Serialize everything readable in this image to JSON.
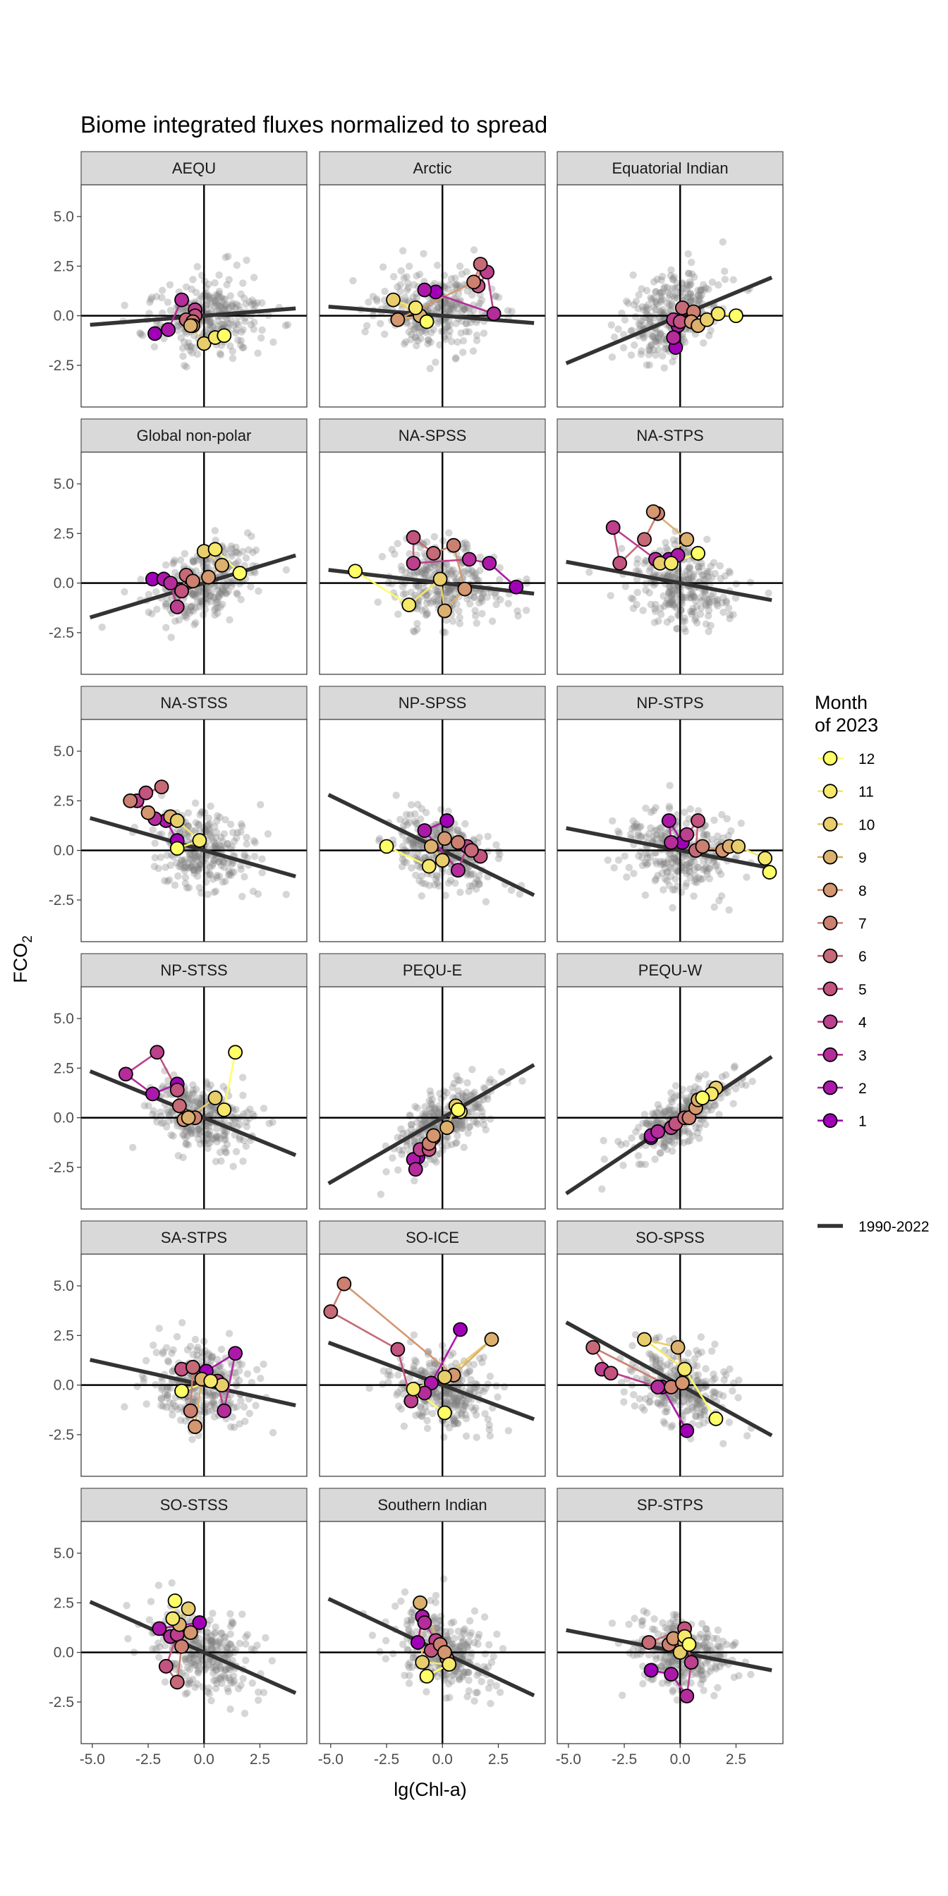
{
  "chart_data": {
    "type": "scatter",
    "title": "Biome integrated fluxes normalized to spread",
    "xlabel": "lg(Chl-a)",
    "ylabel": "FCO2",
    "xlim": [
      -5.5,
      4.6
    ],
    "ylim": [
      -4.6,
      6.6
    ],
    "x_ticks": [
      -5.0,
      -2.5,
      0.0,
      2.5
    ],
    "y_ticks": [
      -2.5,
      0.0,
      2.5,
      5.0
    ],
    "x_tick_labels": [
      "-5.0",
      "-2.5",
      "0.0",
      "2.5"
    ],
    "y_tick_labels": [
      "-2.5",
      "0.0",
      "2.5",
      "5.0"
    ],
    "grid": false,
    "legend": {
      "placement": "right",
      "title_lines": [
        "Month",
        "of 2023"
      ],
      "months": [
        "12",
        "11",
        "10",
        "9",
        "8",
        "7",
        "6",
        "5",
        "4",
        "3",
        "2",
        "1"
      ],
      "month_colors": [
        "#ffff66",
        "#f5e86a",
        "#e8cd6b",
        "#dcb06d",
        "#d4976f",
        "#cc8070",
        "#c66a77",
        "#c2547f",
        "#bc408d",
        "#b52c9b",
        "#ac19aa",
        "#a200b8"
      ],
      "line_label": "1990-2022"
    },
    "panels": [
      {
        "name": "AEQU",
        "slope": 0.09,
        "intercept": 0.0,
        "seed": 1,
        "cx": 0.2,
        "cy": 0.0,
        "sx": 1.2,
        "sy": 1.0,
        "rho": 0.05,
        "months": [
          [
            0.9,
            -1.0
          ],
          [
            0.5,
            -1.1
          ],
          [
            0.0,
            -1.4
          ],
          [
            -0.6,
            -0.5
          ],
          [
            -0.5,
            -0.5
          ],
          [
            -0.5,
            -0.3
          ],
          [
            -0.8,
            -0.2
          ],
          [
            -0.4,
            0.0
          ],
          [
            -0.4,
            0.3
          ],
          [
            -1.0,
            0.8
          ],
          [
            -1.6,
            -0.7
          ],
          [
            -2.2,
            -0.9
          ]
        ]
      },
      {
        "name": "Arctic",
        "slope": -0.09,
        "intercept": 0.0,
        "seed": 2,
        "cx": -0.3,
        "cy": 0.2,
        "sx": 1.3,
        "sy": 1.0,
        "rho": -0.05,
        "months": [
          [
            -0.7,
            -0.3
          ],
          [
            -1.2,
            0.4
          ],
          [
            -2.2,
            0.8
          ],
          [
            -1.0,
            0.0
          ],
          [
            -2.0,
            -0.2
          ],
          [
            1.4,
            1.7
          ],
          [
            1.7,
            2.6
          ],
          [
            1.6,
            1.5
          ],
          [
            2.0,
            2.2
          ],
          [
            2.3,
            0.1
          ],
          [
            -0.8,
            1.3
          ],
          [
            -0.3,
            1.2
          ]
        ]
      },
      {
        "name": "Equatorial Indian",
        "slope": 0.47,
        "intercept": 0.0,
        "seed": 3,
        "cx": -0.3,
        "cy": 0.0,
        "sx": 1.1,
        "sy": 1.1,
        "rho": 0.35,
        "months": [
          [
            2.5,
            0.0
          ],
          [
            1.7,
            0.1
          ],
          [
            1.2,
            -0.2
          ],
          [
            0.8,
            -0.5
          ],
          [
            0.5,
            -0.3
          ],
          [
            0.6,
            0.2
          ],
          [
            0.1,
            0.4
          ],
          [
            0.0,
            -0.3
          ],
          [
            -0.3,
            -0.2
          ],
          [
            -0.3,
            -1.1
          ],
          [
            -0.1,
            -0.5
          ],
          [
            -0.2,
            -1.6
          ]
        ]
      },
      {
        "name": "Global non-polar",
        "slope": 0.34,
        "intercept": 0.0,
        "seed": 4,
        "cx": 0.0,
        "cy": 0.0,
        "sx": 1.1,
        "sy": 1.0,
        "rho": 0.3,
        "months": [
          [
            1.6,
            0.5
          ],
          [
            0.5,
            1.7
          ],
          [
            0.0,
            1.6
          ],
          [
            0.8,
            0.9
          ],
          [
            0.2,
            0.3
          ],
          [
            -0.5,
            0.1
          ],
          [
            -0.8,
            0.4
          ],
          [
            -1.0,
            -0.4
          ],
          [
            -1.2,
            -1.2
          ],
          [
            -1.5,
            0.0
          ],
          [
            -1.8,
            0.2
          ],
          [
            -2.3,
            0.2
          ]
        ]
      },
      {
        "name": "NA-SPSS",
        "slope": -0.13,
        "intercept": 0.0,
        "seed": 5,
        "cx": 0.0,
        "cy": 0.0,
        "sx": 1.2,
        "sy": 1.0,
        "rho": -0.1,
        "months": [
          [
            -3.9,
            0.6
          ],
          [
            -1.5,
            -1.1
          ],
          [
            -0.1,
            0.2
          ],
          [
            0.1,
            -1.4
          ],
          [
            1.0,
            -0.3
          ],
          [
            0.5,
            1.9
          ],
          [
            -0.4,
            1.5
          ],
          [
            -1.3,
            2.3
          ],
          [
            -1.3,
            1.0
          ],
          [
            1.2,
            1.2
          ],
          [
            2.1,
            1.0
          ],
          [
            3.3,
            -0.2
          ]
        ]
      },
      {
        "name": "NA-STPS",
        "slope": -0.21,
        "intercept": 0.0,
        "seed": 6,
        "cx": 0.0,
        "cy": 0.0,
        "sx": 1.1,
        "sy": 1.0,
        "rho": -0.15,
        "months": [
          [
            0.8,
            1.5
          ],
          [
            -0.4,
            1.0
          ],
          [
            -0.9,
            1.0
          ],
          [
            0.3,
            2.2
          ],
          [
            -1.2,
            3.6
          ],
          [
            -1.0,
            3.5
          ],
          [
            -1.6,
            2.2
          ],
          [
            -2.7,
            1.0
          ],
          [
            -3.0,
            2.8
          ],
          [
            -1.1,
            1.2
          ],
          [
            -0.1,
            1.4
          ],
          [
            -0.5,
            1.2
          ]
        ]
      },
      {
        "name": "NA-STSS",
        "slope": -0.32,
        "intercept": 0.0,
        "seed": 7,
        "cx": 0.0,
        "cy": 0.0,
        "sx": 1.1,
        "sy": 1.0,
        "rho": -0.2,
        "months": [
          [
            -1.2,
            0.1
          ],
          [
            -0.2,
            0.5
          ],
          [
            -1.2,
            1.5
          ],
          [
            -1.5,
            1.7
          ],
          [
            -2.5,
            1.9
          ],
          [
            -3.3,
            2.5
          ],
          [
            -1.9,
            3.2
          ],
          [
            -2.6,
            2.9
          ],
          [
            -3.0,
            2.5
          ],
          [
            -2.2,
            1.6
          ],
          [
            -1.7,
            1.5
          ],
          [
            -1.2,
            0.5
          ]
        ]
      },
      {
        "name": "NP-SPSS",
        "slope": -0.55,
        "intercept": 0.0,
        "seed": 8,
        "cx": 0.0,
        "cy": 0.0,
        "sx": 1.1,
        "sy": 1.0,
        "rho": -0.3,
        "months": [
          [
            -2.5,
            0.2
          ],
          [
            -0.6,
            -0.8
          ],
          [
            0.0,
            -0.5
          ],
          [
            -0.5,
            0.2
          ],
          [
            0.1,
            0.6
          ],
          [
            0.7,
            0.4
          ],
          [
            1.3,
            0.0
          ],
          [
            1.7,
            -0.3
          ],
          [
            1.1,
            0.2
          ],
          [
            0.7,
            -1.0
          ],
          [
            -0.8,
            1.0
          ],
          [
            0.2,
            1.5
          ]
        ]
      },
      {
        "name": "NP-STPS",
        "slope": -0.22,
        "intercept": 0.0,
        "seed": 9,
        "cx": 0.0,
        "cy": 0.0,
        "sx": 1.2,
        "sy": 1.0,
        "rho": -0.1,
        "months": [
          [
            4.0,
            -1.1
          ],
          [
            3.8,
            -0.4
          ],
          [
            2.6,
            0.2
          ],
          [
            2.2,
            0.2
          ],
          [
            1.9,
            0.0
          ],
          [
            1.0,
            0.2
          ],
          [
            0.7,
            0.0
          ],
          [
            0.8,
            1.5
          ],
          [
            0.3,
            0.8
          ],
          [
            -0.4,
            0.4
          ],
          [
            -0.5,
            1.5
          ],
          [
            0.1,
            0.4
          ]
        ]
      },
      {
        "name": "NP-STSS",
        "slope": -0.46,
        "intercept": 0.0,
        "seed": 10,
        "cx": 0.0,
        "cy": 0.0,
        "sx": 1.1,
        "sy": 1.0,
        "rho": -0.25,
        "months": [
          [
            1.4,
            3.3
          ],
          [
            0.9,
            0.4
          ],
          [
            0.5,
            1.0
          ],
          [
            -0.7,
            0.0
          ],
          [
            -0.9,
            -0.1
          ],
          [
            -0.4,
            0.0
          ],
          [
            -1.1,
            0.6
          ],
          [
            -1.2,
            1.4
          ],
          [
            -2.1,
            3.3
          ],
          [
            -3.5,
            2.2
          ],
          [
            -2.3,
            1.2
          ],
          [
            -1.2,
            1.7
          ]
        ]
      },
      {
        "name": "PEQU-E",
        "slope": 0.65,
        "intercept": 0.0,
        "seed": 11,
        "cx": 0.0,
        "cy": -0.2,
        "sx": 1.0,
        "sy": 1.0,
        "rho": 0.6,
        "months": [
          [
            0.7,
            0.4
          ],
          [
            0.8,
            0.3
          ],
          [
            0.6,
            0.6
          ],
          [
            0.2,
            -0.5
          ],
          [
            -0.4,
            -0.9
          ],
          [
            -0.6,
            -1.3
          ],
          [
            -0.4,
            -1.0
          ],
          [
            -0.6,
            -1.6
          ],
          [
            -1.0,
            -1.6
          ],
          [
            -1.2,
            -2.6
          ],
          [
            -1.3,
            -2.1
          ],
          [
            -1.1,
            -2.0
          ]
        ]
      },
      {
        "name": "PEQU-W",
        "slope": 0.75,
        "intercept": 0.0,
        "seed": 12,
        "cx": 0.0,
        "cy": 0.0,
        "sx": 1.1,
        "sy": 1.0,
        "rho": 0.75,
        "months": [
          [
            1.0,
            1.0
          ],
          [
            1.4,
            1.2
          ],
          [
            1.6,
            1.5
          ],
          [
            0.8,
            0.9
          ],
          [
            0.7,
            0.5
          ],
          [
            0.4,
            0.0
          ],
          [
            0.2,
            0.0
          ],
          [
            -0.2,
            -0.3
          ],
          [
            -0.4,
            -0.5
          ],
          [
            -1.0,
            -0.7
          ],
          [
            -1.3,
            -0.9
          ],
          [
            -1.3,
            -1.0
          ]
        ]
      },
      {
        "name": "SA-STPS",
        "slope": -0.25,
        "intercept": 0.0,
        "seed": 13,
        "cx": 0.0,
        "cy": 0.0,
        "sx": 1.1,
        "sy": 1.0,
        "rho": -0.1,
        "months": [
          [
            -1.0,
            -0.3
          ],
          [
            0.3,
            0.2
          ],
          [
            0.8,
            0.0
          ],
          [
            -0.1,
            0.3
          ],
          [
            -0.4,
            -2.1
          ],
          [
            -0.6,
            -1.3
          ],
          [
            -0.5,
            0.9
          ],
          [
            -1.0,
            0.8
          ],
          [
            0.6,
            0.2
          ],
          [
            0.9,
            -1.3
          ],
          [
            1.4,
            1.6
          ],
          [
            0.1,
            0.7
          ]
        ]
      },
      {
        "name": "SO-ICE",
        "slope": -0.42,
        "intercept": 0.0,
        "seed": 14,
        "cx": 0.0,
        "cy": -0.2,
        "sx": 1.1,
        "sy": 1.0,
        "rho": -0.25,
        "months": [
          [
            0.1,
            -1.4
          ],
          [
            -1.3,
            -0.2
          ],
          [
            0.1,
            0.4
          ],
          [
            2.2,
            2.3
          ],
          [
            0.5,
            0.5
          ],
          [
            -4.4,
            5.1
          ],
          [
            -5.0,
            3.7
          ],
          [
            -2.0,
            1.8
          ],
          [
            -1.4,
            -0.8
          ],
          [
            -0.8,
            -0.4
          ],
          [
            -0.5,
            0.1
          ],
          [
            0.8,
            2.8
          ]
        ]
      },
      {
        "name": "SO-SPSS",
        "slope": -0.62,
        "intercept": 0.0,
        "seed": 15,
        "cx": 0.0,
        "cy": 0.0,
        "sx": 1.1,
        "sy": 1.0,
        "rho": -0.35,
        "months": [
          [
            1.6,
            -1.7
          ],
          [
            0.2,
            0.8
          ],
          [
            -1.6,
            2.3
          ],
          [
            -0.1,
            1.9
          ],
          [
            0.1,
            0.1
          ],
          [
            -0.4,
            -0.1
          ],
          [
            -3.9,
            1.9
          ],
          [
            -3.1,
            0.6
          ],
          [
            -3.5,
            0.8
          ],
          [
            -1.0,
            -0.1
          ],
          [
            -0.8,
            -0.1
          ],
          [
            0.3,
            -2.3
          ]
        ]
      },
      {
        "name": "SO-STSS",
        "slope": -0.5,
        "intercept": 0.0,
        "seed": 16,
        "cx": 0.0,
        "cy": 0.0,
        "sx": 1.1,
        "sy": 1.0,
        "rho": -0.3,
        "months": [
          [
            -1.3,
            2.6
          ],
          [
            -1.4,
            1.7
          ],
          [
            -0.7,
            2.2
          ],
          [
            -1.1,
            1.4
          ],
          [
            -0.6,
            1.0
          ],
          [
            -1.0,
            0.3
          ],
          [
            -1.2,
            -1.5
          ],
          [
            -1.7,
            -0.7
          ],
          [
            -1.2,
            0.9
          ],
          [
            -1.5,
            0.8
          ],
          [
            -2.0,
            1.2
          ],
          [
            -0.2,
            1.5
          ]
        ]
      },
      {
        "name": "Southern Indian",
        "slope": -0.53,
        "intercept": 0.0,
        "seed": 17,
        "cx": 0.0,
        "cy": 0.0,
        "sx": 1.1,
        "sy": 1.0,
        "rho": -0.3,
        "months": [
          [
            -0.7,
            -1.2
          ],
          [
            0.3,
            -0.6
          ],
          [
            -0.9,
            -0.5
          ],
          [
            -1.0,
            2.5
          ],
          [
            0.1,
            0.0
          ],
          [
            -0.1,
            0.4
          ],
          [
            0.2,
            -0.3
          ],
          [
            -0.5,
            0.1
          ],
          [
            -0.3,
            0.6
          ],
          [
            -0.8,
            1.5
          ],
          [
            -0.9,
            1.8
          ],
          [
            -1.1,
            0.5
          ]
        ]
      },
      {
        "name": "SP-STPS",
        "slope": -0.22,
        "intercept": 0.0,
        "seed": 18,
        "cx": 0.0,
        "cy": 0.0,
        "sx": 1.1,
        "sy": 0.9,
        "rho": -0.1,
        "months": [
          [
            0.4,
            0.4
          ],
          [
            0.2,
            0.8
          ],
          [
            0.0,
            0.0
          ],
          [
            0.2,
            0.5
          ],
          [
            -0.3,
            0.7
          ],
          [
            -0.5,
            0.4
          ],
          [
            -1.4,
            0.5
          ],
          [
            0.2,
            1.2
          ],
          [
            0.5,
            -0.5
          ],
          [
            0.3,
            -2.2
          ],
          [
            -0.4,
            -1.1
          ],
          [
            -1.3,
            -0.9
          ]
        ]
      }
    ]
  }
}
